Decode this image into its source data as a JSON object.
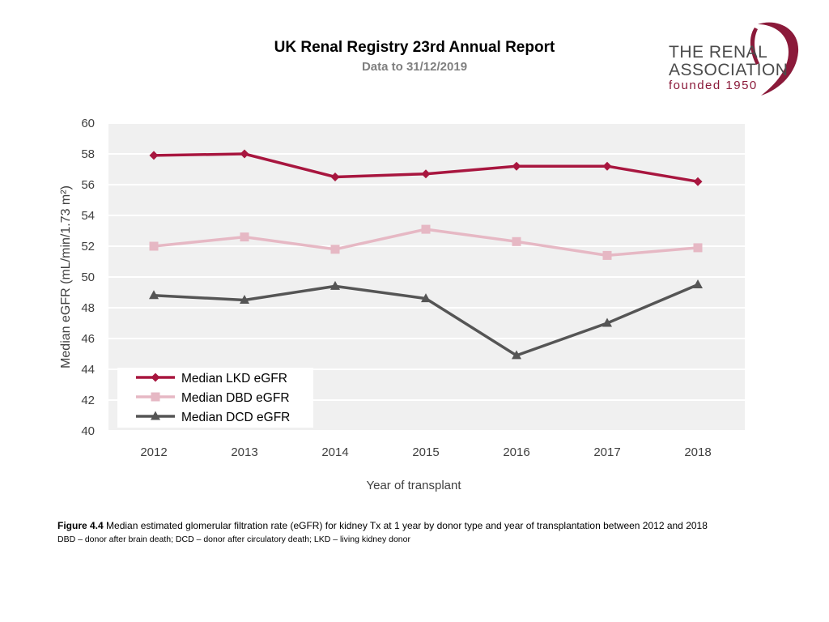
{
  "header": {
    "title": "UK Renal Registry 23rd Annual Report",
    "subtitle": "Data to 31/12/2019"
  },
  "logo": {
    "line1": "THE RENAL",
    "line2": "ASSOCIATION",
    "line3": "founded 1950"
  },
  "chart_data": {
    "type": "line",
    "title": "",
    "xlabel": "Year of transplant",
    "ylabel": "Median eGFR (mL/min/1.73 m²)",
    "categories": [
      "2012",
      "2013",
      "2014",
      "2015",
      "2016",
      "2017",
      "2018"
    ],
    "ylim": [
      40,
      60
    ],
    "yticks": [
      40,
      42,
      44,
      46,
      48,
      50,
      52,
      54,
      56,
      58,
      60
    ],
    "grid": true,
    "legend_position": "bottom-left",
    "series": [
      {
        "name": "Median LKD eGFR",
        "color": "#a8163f",
        "marker": "diamond",
        "values": [
          57.9,
          58.0,
          56.5,
          56.7,
          57.2,
          57.2,
          56.2
        ]
      },
      {
        "name": "Median DBD eGFR",
        "color": "#e6b8c4",
        "marker": "square",
        "values": [
          52.0,
          52.6,
          51.8,
          53.1,
          52.3,
          51.4,
          51.9
        ]
      },
      {
        "name": "Median DCD eGFR",
        "color": "#555555",
        "marker": "triangle",
        "values": [
          48.8,
          48.5,
          49.4,
          48.6,
          44.9,
          47.0,
          49.5
        ]
      }
    ]
  },
  "caption": {
    "figure_number": "Figure 4.4",
    "text": " Median estimated glomerular filtration rate (eGFR) for kidney Tx at 1 year by donor type and year of transplantation between 2012 and 2018",
    "abbreviations": "DBD – donor after brain death; DCD – donor after circulatory death; LKD – living kidney donor"
  }
}
